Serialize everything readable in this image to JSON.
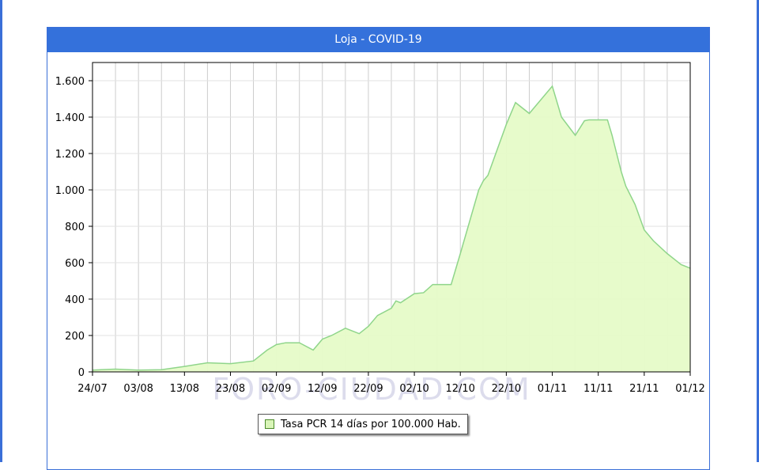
{
  "header": {
    "title": "Loja - COVID-19"
  },
  "watermark": "FORO-CIUDAD.COM",
  "colors": {
    "header": "#3471db",
    "fill": "#e6fbc8",
    "line": "#8fd58a",
    "grid": "#cccccc"
  },
  "chart_data": {
    "type": "area",
    "title": "Loja - COVID-19",
    "xlabel": "",
    "ylabel": "",
    "ylim": [
      0,
      1700
    ],
    "y_ticks": [
      0,
      200,
      400,
      600,
      800,
      1000,
      1200,
      1400,
      1600
    ],
    "y_tick_labels": [
      "0",
      "200",
      "400",
      "600",
      "800",
      "1.000",
      "1.200",
      "1.400",
      "1.600"
    ],
    "x_tick_labels": [
      "24/07",
      "03/08",
      "13/08",
      "23/08",
      "02/09",
      "12/09",
      "22/09",
      "02/10",
      "12/10",
      "22/10",
      "01/11",
      "11/11",
      "21/11",
      "01/12"
    ],
    "grid": true,
    "legend": {
      "placement": "bottom-center"
    },
    "series": [
      {
        "name": "Tasa PCR 14 días por 100.000 Hab.",
        "x": [
          0,
          5,
          10,
          15,
          20,
          25,
          30,
          35,
          38,
          40,
          42,
          45,
          48,
          50,
          52,
          55,
          58,
          60,
          62,
          65,
          66,
          67,
          70,
          72,
          74,
          75,
          78,
          80,
          84,
          85,
          86,
          88,
          90,
          92,
          95,
          100,
          102,
          105,
          107,
          108,
          109,
          110,
          111,
          112,
          113,
          114,
          115,
          116,
          118,
          120,
          122,
          125,
          127,
          128,
          130
        ],
        "values": [
          10,
          15,
          10,
          12,
          30,
          50,
          45,
          60,
          120,
          150,
          160,
          160,
          120,
          180,
          200,
          240,
          210,
          250,
          310,
          350,
          390,
          380,
          430,
          435,
          480,
          480,
          480,
          650,
          1000,
          1050,
          1080,
          1220,
          1360,
          1480,
          1420,
          1570,
          1400,
          1300,
          1380,
          1385,
          1385,
          1385,
          1385,
          1385,
          1300,
          1200,
          1100,
          1020,
          920,
          780,
          720,
          650,
          610,
          590,
          570
        ]
      }
    ]
  }
}
